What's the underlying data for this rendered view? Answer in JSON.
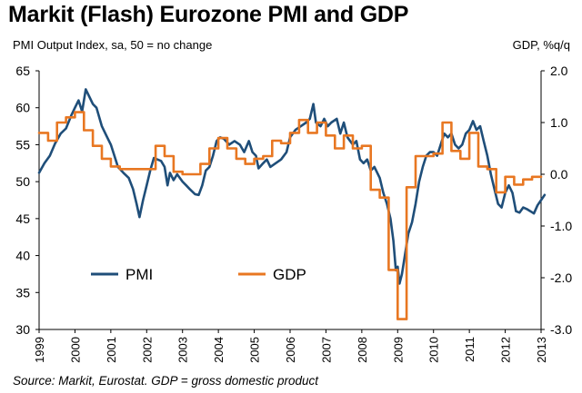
{
  "title": "Markit (Flash) Eurozone PMI and GDP",
  "source": "Source: Markit, Eurostat. GDP = gross domestic product",
  "chart_data": {
    "type": "line",
    "ylabel_left": "PMI Output Index, sa, 50 = no change",
    "ylabel_right": "GDP, %q/q",
    "y_left_range": [
      30,
      65
    ],
    "y_left_ticks": [
      "30",
      "35",
      "40",
      "45",
      "50",
      "55",
      "60",
      "65"
    ],
    "y_right_range": [
      -3.0,
      2.0
    ],
    "y_right_ticks": [
      "-3.0",
      "-2.0",
      "-1.0",
      "0.0",
      "1.0",
      "2.0"
    ],
    "x_range": [
      1999,
      2013
    ],
    "x_ticks": [
      "1999",
      "2000",
      "2001",
      "2002",
      "2003",
      "2004",
      "2005",
      "2006",
      "2007",
      "2008",
      "2009",
      "2010",
      "2011",
      "2012",
      "2013"
    ],
    "grid": false,
    "legend_placement": "lower-left",
    "series": [
      {
        "name": "PMI",
        "axis": "left",
        "color": "#1f4e79",
        "points": [
          [
            1999.0,
            51.2
          ],
          [
            1999.15,
            52.5
          ],
          [
            1999.3,
            53.5
          ],
          [
            1999.45,
            55.2
          ],
          [
            1999.6,
            56.5
          ],
          [
            1999.75,
            57.2
          ],
          [
            1999.9,
            59.0
          ],
          [
            2000.0,
            60.0
          ],
          [
            2000.1,
            61.0
          ],
          [
            2000.2,
            59.5
          ],
          [
            2000.3,
            62.5
          ],
          [
            2000.4,
            61.5
          ],
          [
            2000.5,
            60.5
          ],
          [
            2000.6,
            60.0
          ],
          [
            2000.75,
            57.5
          ],
          [
            2000.9,
            56.0
          ],
          [
            2001.0,
            55.0
          ],
          [
            2001.1,
            53.5
          ],
          [
            2001.2,
            52.0
          ],
          [
            2001.35,
            51.2
          ],
          [
            2001.5,
            50.5
          ],
          [
            2001.62,
            49.0
          ],
          [
            2001.72,
            47.0
          ],
          [
            2001.8,
            45.2
          ],
          [
            2001.9,
            47.5
          ],
          [
            2002.0,
            49.5
          ],
          [
            2002.1,
            51.5
          ],
          [
            2002.2,
            53.2
          ],
          [
            2002.3,
            53.0
          ],
          [
            2002.4,
            52.8
          ],
          [
            2002.5,
            52.0
          ],
          [
            2002.58,
            49.5
          ],
          [
            2002.65,
            51.2
          ],
          [
            2002.75,
            50.2
          ],
          [
            2002.85,
            51.0
          ],
          [
            2003.0,
            50.0
          ],
          [
            2003.1,
            49.5
          ],
          [
            2003.2,
            49.0
          ],
          [
            2003.35,
            48.3
          ],
          [
            2003.45,
            48.2
          ],
          [
            2003.55,
            49.5
          ],
          [
            2003.65,
            51.5
          ],
          [
            2003.75,
            52.0
          ],
          [
            2003.85,
            53.5
          ],
          [
            2003.95,
            55.5
          ],
          [
            2004.05,
            56.0
          ],
          [
            2004.15,
            55.8
          ],
          [
            2004.3,
            55.0
          ],
          [
            2004.45,
            55.5
          ],
          [
            2004.6,
            55.0
          ],
          [
            2004.72,
            54.0
          ],
          [
            2004.85,
            55.5
          ],
          [
            2004.95,
            54.0
          ],
          [
            2005.05,
            53.5
          ],
          [
            2005.12,
            51.8
          ],
          [
            2005.25,
            52.5
          ],
          [
            2005.35,
            53.0
          ],
          [
            2005.45,
            52.0
          ],
          [
            2005.6,
            52.5
          ],
          [
            2005.75,
            53.0
          ],
          [
            2005.9,
            54.0
          ],
          [
            2006.0,
            56.0
          ],
          [
            2006.15,
            57.0
          ],
          [
            2006.3,
            57.5
          ],
          [
            2006.45,
            58.0
          ],
          [
            2006.55,
            58.5
          ],
          [
            2006.65,
            60.5
          ],
          [
            2006.72,
            58.0
          ],
          [
            2006.85,
            57.5
          ],
          [
            2006.95,
            58.5
          ],
          [
            2007.05,
            57.5
          ],
          [
            2007.15,
            58.0
          ],
          [
            2007.3,
            58.5
          ],
          [
            2007.4,
            56.5
          ],
          [
            2007.5,
            58.0
          ],
          [
            2007.6,
            56.0
          ],
          [
            2007.75,
            55.0
          ],
          [
            2007.85,
            55.5
          ],
          [
            2007.95,
            53.0
          ],
          [
            2008.05,
            52.5
          ],
          [
            2008.15,
            53.0
          ],
          [
            2008.25,
            51.5
          ],
          [
            2008.35,
            52.0
          ],
          [
            2008.5,
            50.5
          ],
          [
            2008.6,
            48.5
          ],
          [
            2008.7,
            47.0
          ],
          [
            2008.8,
            45.0
          ],
          [
            2008.88,
            42.0
          ],
          [
            2008.95,
            38.0
          ],
          [
            2009.0,
            38.5
          ],
          [
            2009.05,
            36.2
          ],
          [
            2009.12,
            37.5
          ],
          [
            2009.2,
            40.0
          ],
          [
            2009.3,
            43.0
          ],
          [
            2009.4,
            44.5
          ],
          [
            2009.5,
            47.0
          ],
          [
            2009.6,
            50.0
          ],
          [
            2009.7,
            52.0
          ],
          [
            2009.8,
            53.5
          ],
          [
            2009.9,
            54.0
          ],
          [
            2010.0,
            54.0
          ],
          [
            2010.1,
            53.5
          ],
          [
            2010.2,
            55.0
          ],
          [
            2010.3,
            56.5
          ],
          [
            2010.4,
            56.0
          ],
          [
            2010.5,
            56.5
          ],
          [
            2010.6,
            55.0
          ],
          [
            2010.7,
            54.5
          ],
          [
            2010.8,
            55.0
          ],
          [
            2010.9,
            56.5
          ],
          [
            2011.0,
            57.0
          ],
          [
            2011.1,
            58.2
          ],
          [
            2011.2,
            57.0
          ],
          [
            2011.3,
            57.5
          ],
          [
            2011.4,
            55.5
          ],
          [
            2011.5,
            53.5
          ],
          [
            2011.6,
            51.0
          ],
          [
            2011.7,
            49.0
          ],
          [
            2011.8,
            47.0
          ],
          [
            2011.9,
            46.5
          ],
          [
            2012.0,
            48.5
          ],
          [
            2012.1,
            49.5
          ],
          [
            2012.2,
            48.5
          ],
          [
            2012.3,
            46.0
          ],
          [
            2012.4,
            45.8
          ],
          [
            2012.5,
            46.5
          ],
          [
            2012.6,
            46.3
          ],
          [
            2012.7,
            46.0
          ],
          [
            2012.8,
            45.7
          ],
          [
            2012.9,
            46.8
          ],
          [
            2013.0,
            47.5
          ],
          [
            2013.1,
            48.2
          ]
        ]
      },
      {
        "name": "GDP",
        "axis": "right",
        "color": "#e87722",
        "points": [
          [
            1999.0,
            0.8
          ],
          [
            1999.25,
            0.65
          ],
          [
            1999.5,
            1.0
          ],
          [
            1999.75,
            1.1
          ],
          [
            2000.0,
            1.2
          ],
          [
            2000.25,
            0.85
          ],
          [
            2000.5,
            0.55
          ],
          [
            2000.75,
            0.3
          ],
          [
            2001.0,
            0.15
          ],
          [
            2001.25,
            0.1
          ],
          [
            2001.5,
            0.1
          ],
          [
            2001.75,
            0.1
          ],
          [
            2002.0,
            0.1
          ],
          [
            2002.25,
            0.55
          ],
          [
            2002.5,
            0.35
          ],
          [
            2002.75,
            0.05
          ],
          [
            2003.0,
            0.0
          ],
          [
            2003.25,
            0.0
          ],
          [
            2003.5,
            0.2
          ],
          [
            2003.75,
            0.5
          ],
          [
            2004.0,
            0.7
          ],
          [
            2004.25,
            0.5
          ],
          [
            2004.5,
            0.3
          ],
          [
            2004.75,
            0.2
          ],
          [
            2005.0,
            0.3
          ],
          [
            2005.25,
            0.35
          ],
          [
            2005.5,
            0.65
          ],
          [
            2005.75,
            0.6
          ],
          [
            2006.0,
            0.8
          ],
          [
            2006.25,
            1.05
          ],
          [
            2006.5,
            0.8
          ],
          [
            2006.75,
            1.0
          ],
          [
            2007.0,
            0.75
          ],
          [
            2007.25,
            0.5
          ],
          [
            2007.5,
            0.75
          ],
          [
            2007.75,
            0.5
          ],
          [
            2008.0,
            0.55
          ],
          [
            2008.25,
            -0.3
          ],
          [
            2008.5,
            -0.45
          ],
          [
            2008.75,
            -1.85
          ],
          [
            2009.0,
            -2.8
          ],
          [
            2009.25,
            -0.25
          ],
          [
            2009.5,
            0.35
          ],
          [
            2009.75,
            0.35
          ],
          [
            2010.0,
            0.4
          ],
          [
            2010.25,
            1.0
          ],
          [
            2010.5,
            0.45
          ],
          [
            2010.75,
            0.3
          ],
          [
            2011.0,
            0.8
          ],
          [
            2011.25,
            0.15
          ],
          [
            2011.5,
            0.1
          ],
          [
            2011.75,
            -0.35
          ],
          [
            2012.0,
            -0.05
          ],
          [
            2012.25,
            -0.2
          ],
          [
            2012.5,
            -0.1
          ],
          [
            2012.75,
            -0.05
          ]
        ]
      }
    ]
  }
}
